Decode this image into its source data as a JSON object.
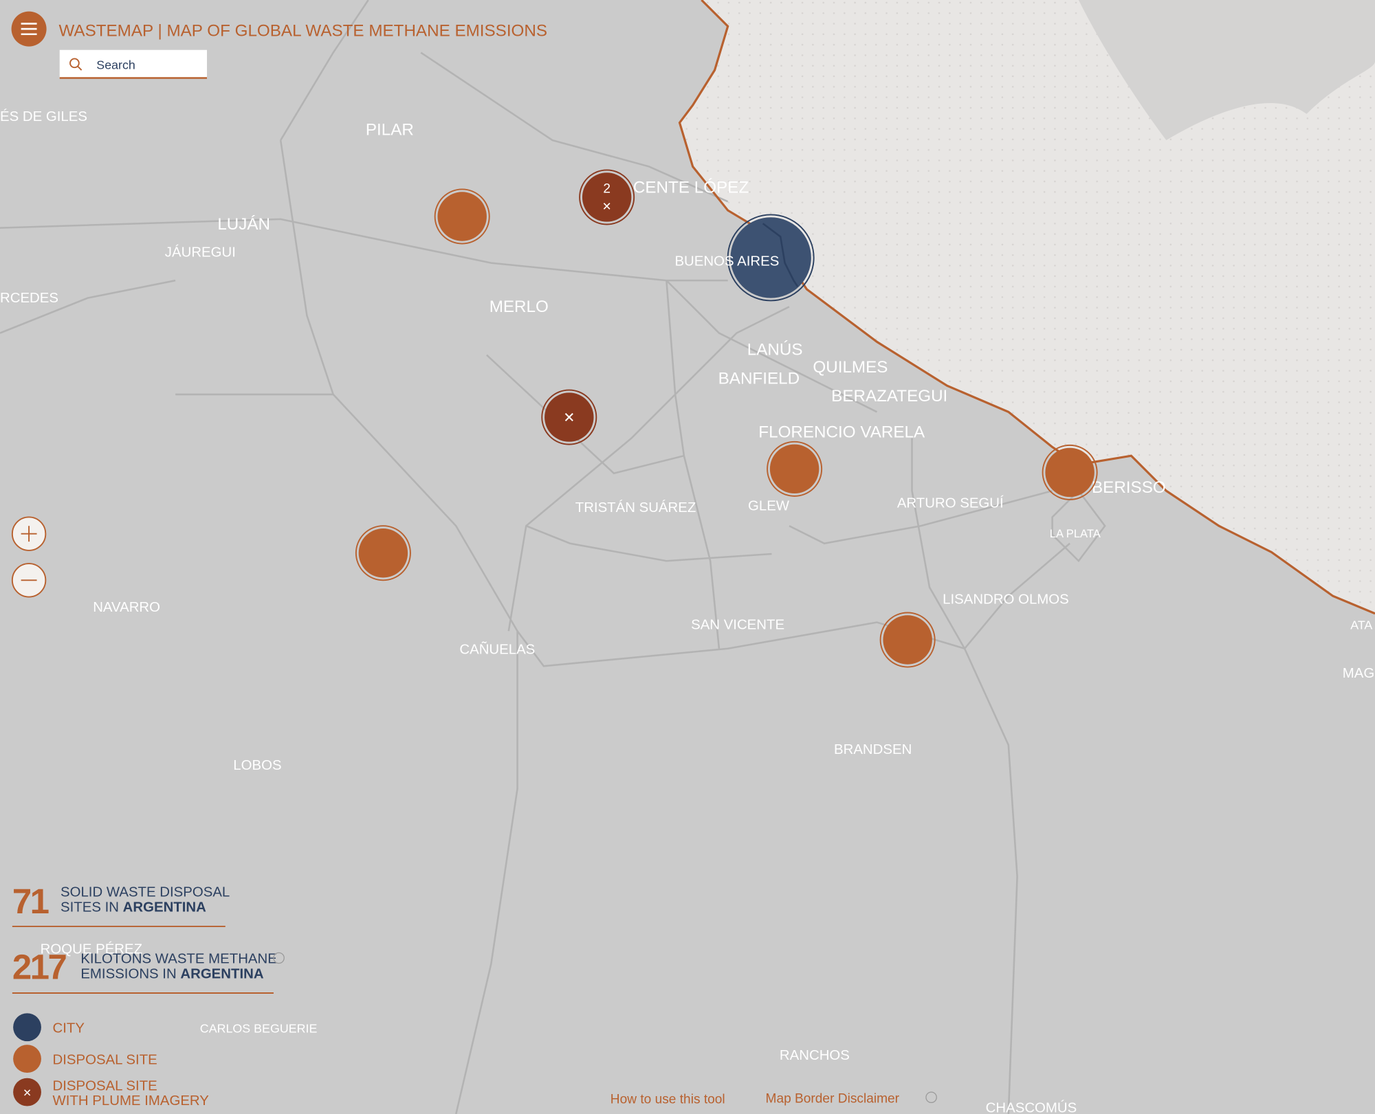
{
  "header": {
    "title": "WASTEMAP | MAP OF GLOBAL WASTE METHANE EMISSIONS",
    "search_placeholder": "Search"
  },
  "places": [
    "ÉS DE GILES",
    "PILAR",
    "LUJÁN",
    "JÁUREGUI",
    "RCEDES",
    "CENTE LÓPEZ",
    "BUENOS AIRES",
    "MERLO",
    "LANÚS",
    "QUILMES",
    "BANFIELD",
    "BERAZATEGUI",
    "FLORENCIO VARELA",
    "TRISTÁN SUÁREZ",
    "GLEW",
    "ARTURO SEGUÍ",
    "BERISSO",
    "LA PLATA",
    "NAVARRO",
    "CAÑUELAS",
    "SAN VICENTE",
    "LISANDRO OLMOS",
    "ATA",
    "MAG",
    "BRANDSEN",
    "LOBOS",
    "ROQUE PÉREZ",
    "CARLOS BEGUERIE",
    "RANCHOS",
    "CHASCOMÚS"
  ],
  "cluster_count": "2",
  "stats": [
    {
      "number": "71",
      "line1": "SOLID WASTE DISPOSAL",
      "line2_prefix": "SITES IN",
      "country": "ARGENTINA"
    },
    {
      "number": "217",
      "line1": "KILOTONS WASTE METHANE",
      "line2_prefix": "EMISSIONS IN",
      "country": "ARGENTINA"
    }
  ],
  "legend": {
    "city": "CITY",
    "disposal_site": "DISPOSAL SITE",
    "plume_line1": "DISPOSAL SITE",
    "plume_line2": "WITH PLUME IMAGERY"
  },
  "footer": {
    "how_to": "How to use this tool",
    "disclaimer": "Map Border Disclaimer"
  }
}
